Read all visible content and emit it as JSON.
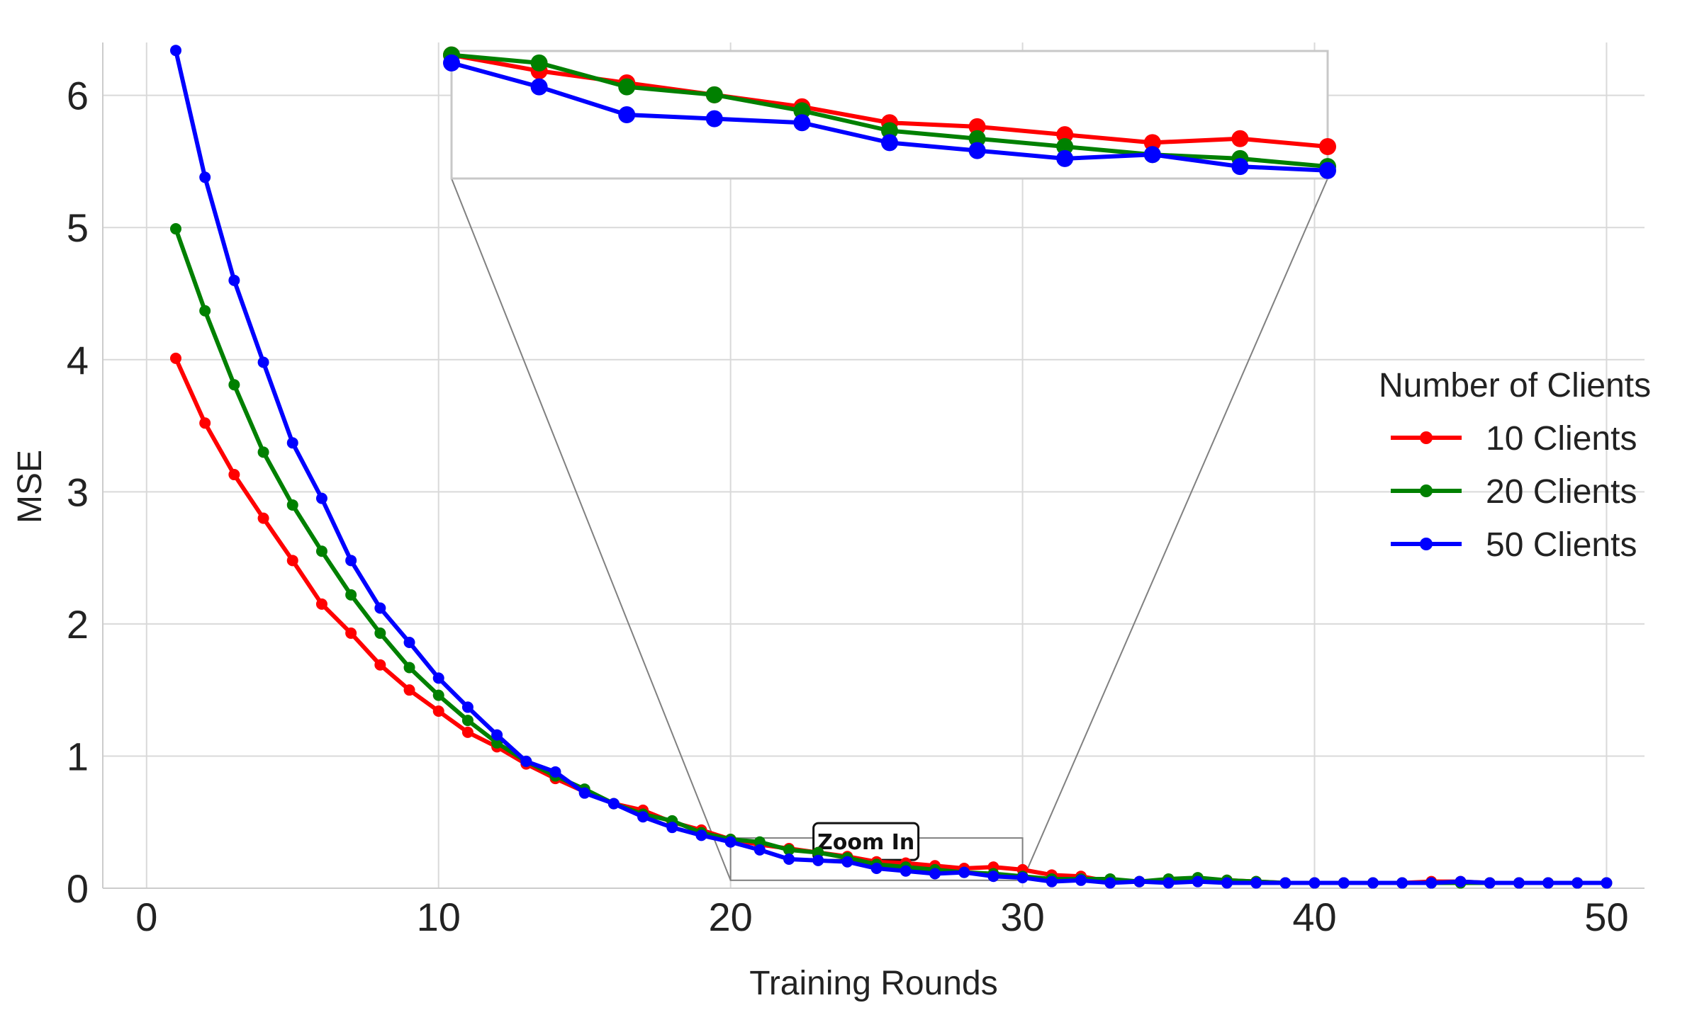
{
  "chart_data": {
    "type": "line",
    "title": "",
    "xlabel": "Training Rounds",
    "ylabel": "MSE",
    "xlim": [
      -1.5,
      51.3
    ],
    "ylim": [
      0,
      6.4
    ],
    "xticks": [
      0,
      10,
      20,
      30,
      40,
      50
    ],
    "yticks": [
      0,
      1,
      2,
      3,
      4,
      5,
      6
    ],
    "grid": true,
    "legend": {
      "title": "Number of Clients",
      "position": "center-right"
    },
    "x": [
      1,
      2,
      3,
      4,
      5,
      6,
      7,
      8,
      9,
      10,
      11,
      12,
      13,
      14,
      15,
      16,
      17,
      18,
      19,
      20,
      21,
      22,
      23,
      24,
      25,
      26,
      27,
      28,
      29,
      30,
      31,
      32,
      33,
      34,
      35,
      36,
      37,
      38,
      39,
      40,
      41,
      42,
      43,
      44,
      45,
      46,
      47,
      48,
      49,
      50
    ],
    "series": [
      {
        "name": "10 Clients",
        "color": "#ff0000",
        "values": [
          4.01,
          3.52,
          3.13,
          2.8,
          2.48,
          2.15,
          1.93,
          1.69,
          1.5,
          1.34,
          1.18,
          1.07,
          0.94,
          0.83,
          0.73,
          0.64,
          0.59,
          0.5,
          0.44,
          0.37,
          0.33,
          0.3,
          0.27,
          0.24,
          0.2,
          0.19,
          0.17,
          0.15,
          0.16,
          0.14,
          0.1,
          0.09,
          0.05,
          0.05,
          0.05,
          0.06,
          0.06,
          0.05,
          0.04,
          0.04,
          0.04,
          0.04,
          0.04,
          0.05,
          0.05,
          0.04,
          0.04,
          0.04,
          0.04,
          0.04
        ]
      },
      {
        "name": "20 Clients",
        "color": "#008000",
        "values": [
          4.99,
          4.37,
          3.81,
          3.3,
          2.9,
          2.55,
          2.22,
          1.93,
          1.67,
          1.46,
          1.27,
          1.1,
          0.96,
          0.85,
          0.75,
          0.64,
          0.56,
          0.51,
          0.42,
          0.37,
          0.35,
          0.29,
          0.27,
          0.23,
          0.18,
          0.16,
          0.14,
          0.12,
          0.11,
          0.09,
          0.07,
          0.07,
          0.07,
          0.05,
          0.07,
          0.08,
          0.06,
          0.05,
          0.04,
          0.04,
          0.04,
          0.04,
          0.04,
          0.04,
          0.04,
          0.04,
          0.04,
          0.04,
          0.04,
          0.04
        ]
      },
      {
        "name": "50 Clients",
        "color": "#0000ff",
        "values": [
          6.34,
          5.38,
          4.6,
          3.98,
          3.37,
          2.95,
          2.48,
          2.12,
          1.86,
          1.59,
          1.37,
          1.16,
          0.96,
          0.88,
          0.72,
          0.64,
          0.54,
          0.46,
          0.4,
          0.35,
          0.29,
          0.22,
          0.21,
          0.2,
          0.15,
          0.13,
          0.11,
          0.12,
          0.09,
          0.08,
          0.05,
          0.06,
          0.04,
          0.05,
          0.04,
          0.05,
          0.04,
          0.04,
          0.04,
          0.04,
          0.04,
          0.04,
          0.04,
          0.04,
          0.05,
          0.04,
          0.04,
          0.04,
          0.04,
          0.04
        ]
      }
    ],
    "inset": {
      "label": "Zoom In",
      "xlim": [
        20,
        30
      ],
      "ylim": [
        0.06,
        0.38
      ]
    }
  }
}
